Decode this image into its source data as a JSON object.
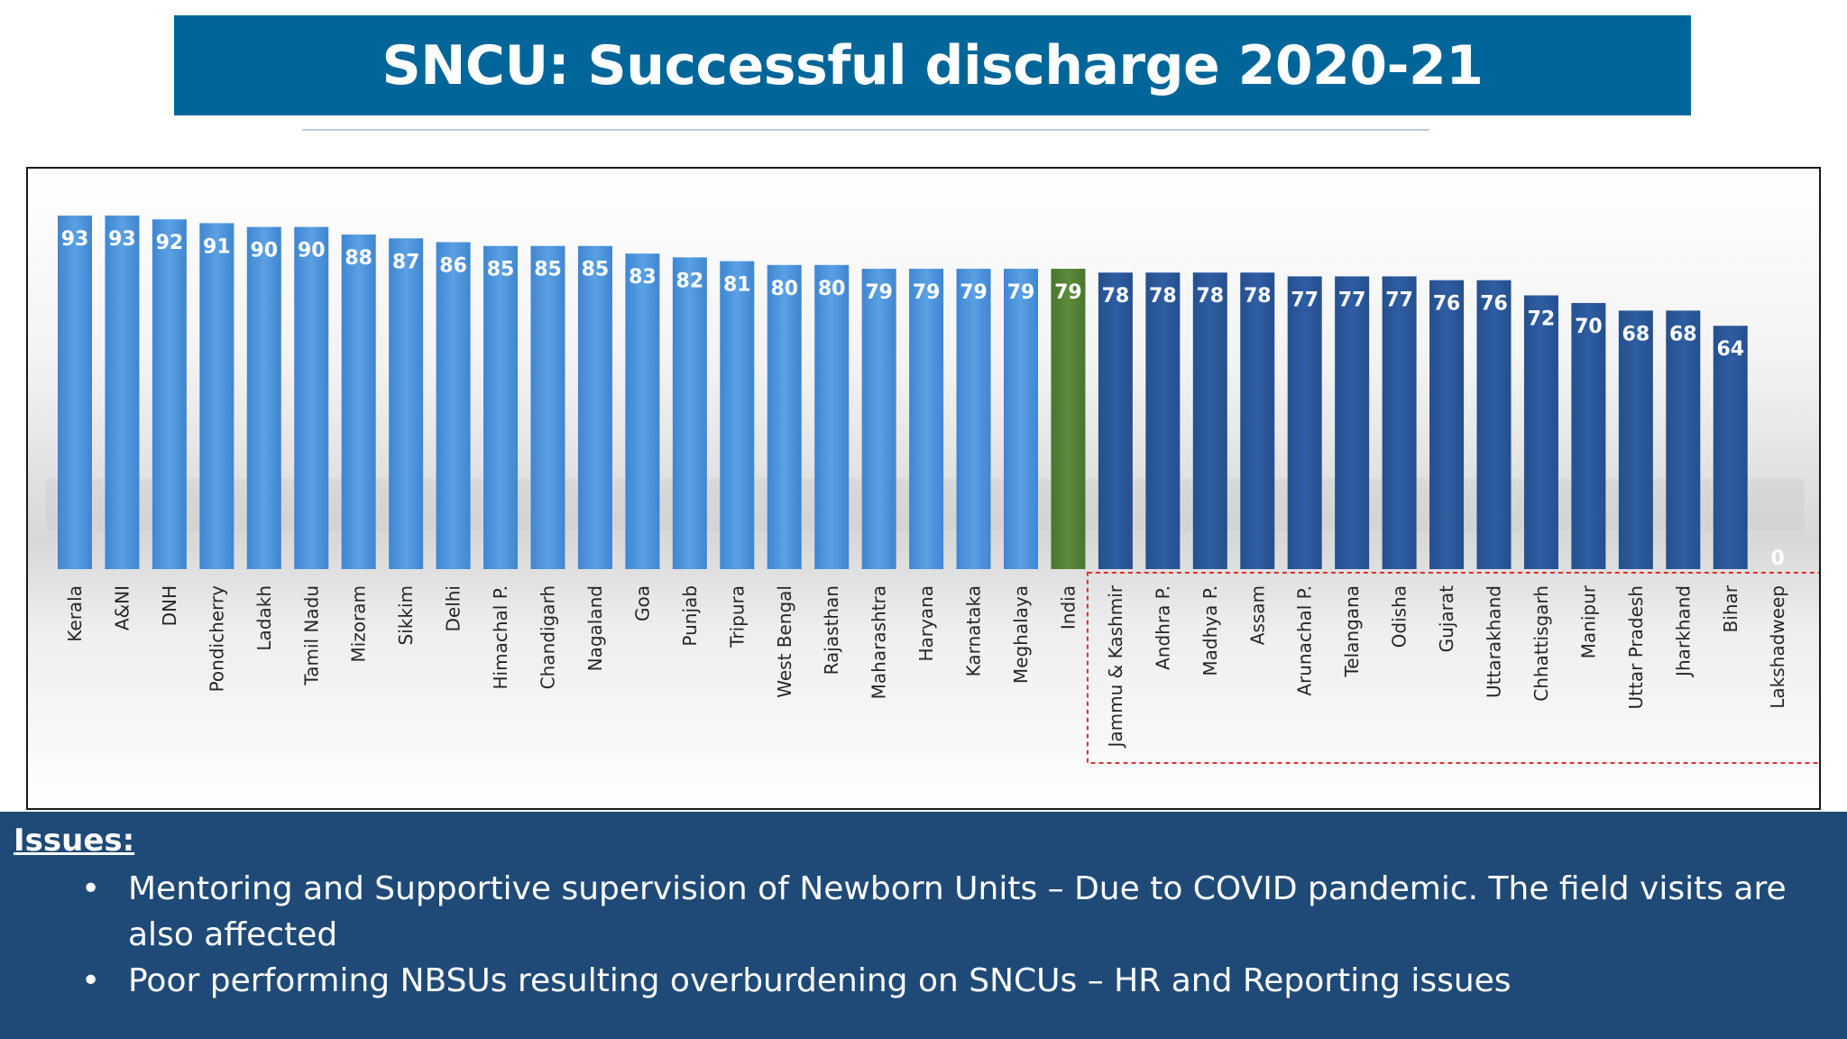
{
  "title": "SNCU: Successful discharge 2020-21",
  "colors": {
    "title_bg": "#006699",
    "bar_light": "#4a90d9",
    "bar_india": "#548235",
    "bar_dark": "#2b5597",
    "highlight_box": "#e03030",
    "issues_bg": "#1f4a78"
  },
  "chart_data": {
    "type": "bar",
    "title": "",
    "xlabel": "",
    "ylabel": "",
    "ylim": [
      0,
      100
    ],
    "grid": false,
    "legend": "none",
    "categories": [
      "Kerala",
      "A&NI",
      "DNH",
      "Pondicherry",
      "Ladakh",
      "Tamil Nadu",
      "Mizoram",
      "Sikkim",
      "Delhi",
      "Himachal P.",
      "Chandigarh",
      "Nagaland",
      "Goa",
      "Punjab",
      "Tripura",
      "West Bengal",
      "Rajasthan",
      "Maharashtra",
      "Haryana",
      "Karnataka",
      "Meghalaya",
      "India",
      "Jammu & Kashmir",
      "Andhra P.",
      "Madhya P.",
      "Assam",
      "Arunachal P.",
      "Telangana",
      "Odisha",
      "Gujarat",
      "Uttarakhand",
      "Chhattisgarh",
      "Manipur",
      "Uttar Pradesh",
      "Jharkhand",
      "Bihar",
      "Lakshadweep"
    ],
    "values": [
      93,
      93,
      92,
      91,
      90,
      90,
      88,
      87,
      86,
      85,
      85,
      85,
      83,
      82,
      81,
      80,
      80,
      79,
      79,
      79,
      79,
      79,
      78,
      78,
      78,
      78,
      77,
      77,
      77,
      76,
      76,
      72,
      70,
      68,
      68,
      64,
      0
    ],
    "bar_groups": [
      "light",
      "light",
      "light",
      "light",
      "light",
      "light",
      "light",
      "light",
      "light",
      "light",
      "light",
      "light",
      "light",
      "light",
      "light",
      "light",
      "light",
      "light",
      "light",
      "light",
      "light",
      "india",
      "dark",
      "dark",
      "dark",
      "dark",
      "dark",
      "dark",
      "dark",
      "dark",
      "dark",
      "dark",
      "dark",
      "dark",
      "dark",
      "dark",
      "dark"
    ],
    "highlight_range": [
      "Jammu & Kashmir",
      "Lakshadweep"
    ]
  },
  "issues": {
    "heading": "Issues:",
    "bullet": "•",
    "items": [
      "Mentoring and Supportive supervision of Newborn Units – Due to COVID pandemic. The field visits are also affected",
      " Poor performing NBSUs resulting overburdening on SNCUs – HR and Reporting issues"
    ]
  }
}
